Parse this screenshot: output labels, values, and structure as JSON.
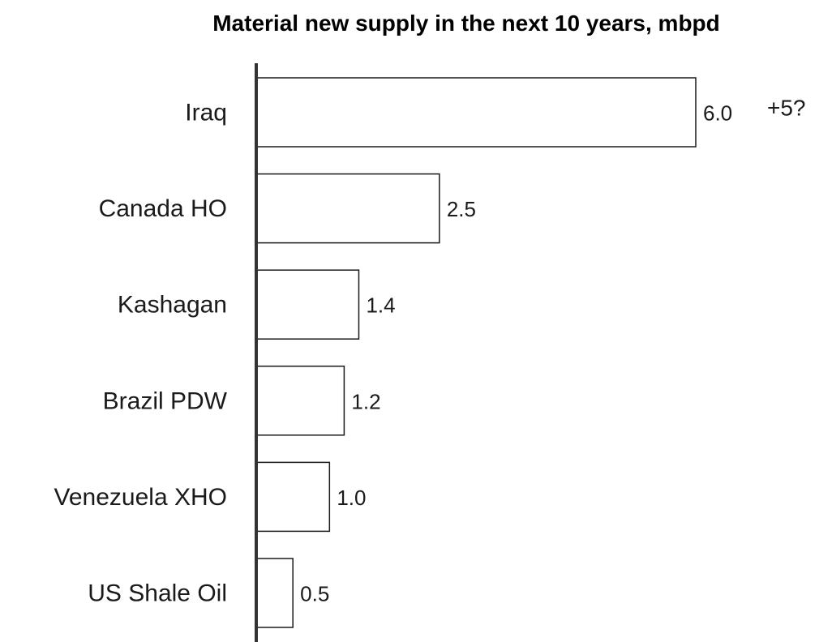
{
  "chart_data": {
    "type": "bar",
    "orientation": "horizontal",
    "title": "Material new supply in the next 10 years, mbpd",
    "xlabel": "",
    "ylabel": "",
    "categories": [
      "Iraq",
      "Canada HO",
      "Kashagan",
      "Brazil PDW",
      "Venezuela XHO",
      "US Shale Oil"
    ],
    "values": [
      6.0,
      2.5,
      1.4,
      1.2,
      1.0,
      0.5
    ],
    "value_labels": [
      "6.0",
      "2.5",
      "1.4",
      "1.2",
      "1.0",
      "0.5"
    ],
    "xlim": [
      0,
      6.0
    ],
    "grid": false,
    "annotations": [
      {
        "category": "Iraq",
        "text": "+5?"
      }
    ],
    "colors": {
      "bar_fill": "#ffffff",
      "bar_stroke": "#1a1a1a",
      "axis": "#333333",
      "text": "#1a1a1a"
    }
  }
}
